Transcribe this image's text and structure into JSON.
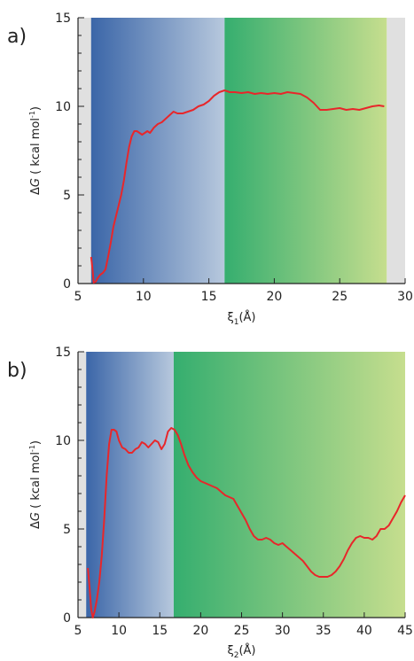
{
  "chart_data": [
    {
      "panel_label": "a)",
      "type": "line",
      "xlim": [
        5,
        30
      ],
      "ylim": [
        0,
        15
      ],
      "x_ticks": [
        5,
        10,
        15,
        20,
        25,
        30
      ],
      "y_ticks": [
        0,
        5,
        10,
        15
      ],
      "y_minor_step": 1,
      "xlabel": {
        "main": "ξ",
        "sub": "1",
        "tail": "(Å)"
      },
      "ylabel": {
        "delta": "Δ",
        "var": "G",
        "open": " ( kcal mol",
        "sup": "-1",
        "close": ")"
      },
      "regions": [
        {
          "from": 5,
          "to": 6.0,
          "color": "#e0e0e0"
        },
        {
          "from": 6.0,
          "to": 16.2,
          "gradient": [
            "#3b66a8",
            "#b7c8dd"
          ]
        },
        {
          "from": 16.2,
          "to": 28.6,
          "gradient": [
            "#35ae6f",
            "#c6de8e"
          ]
        },
        {
          "from": 28.6,
          "to": 30,
          "color": "#e0e0e0"
        }
      ],
      "series": [
        {
          "color": "#e8262a",
          "x": [
            6.0,
            6.1,
            6.2,
            6.35,
            6.5,
            6.7,
            6.9,
            7.1,
            7.3,
            7.5,
            7.7,
            7.9,
            8.1,
            8.3,
            8.5,
            8.7,
            8.9,
            9.1,
            9.3,
            9.5,
            9.7,
            9.9,
            10.1,
            10.3,
            10.5,
            10.8,
            11.1,
            11.4,
            11.7,
            12.0,
            12.3,
            12.6,
            13.0,
            13.4,
            13.8,
            14.2,
            14.6,
            15.0,
            15.4,
            15.8,
            16.2,
            16.6,
            17.0,
            17.5,
            18.0,
            18.5,
            19.0,
            19.5,
            20.0,
            20.5,
            21.0,
            21.5,
            22.0,
            22.5,
            23.0,
            23.5,
            24.0,
            24.5,
            25.0,
            25.5,
            26.0,
            26.5,
            27.0,
            27.5,
            28.0,
            28.4
          ],
          "y": [
            1.5,
            0.9,
            0.05,
            0.1,
            0.3,
            0.5,
            0.6,
            0.8,
            1.5,
            2.3,
            3.2,
            3.8,
            4.4,
            5.0,
            5.8,
            6.8,
            7.7,
            8.3,
            8.6,
            8.6,
            8.5,
            8.4,
            8.5,
            8.6,
            8.5,
            8.8,
            9.0,
            9.1,
            9.3,
            9.5,
            9.7,
            9.6,
            9.6,
            9.7,
            9.8,
            10.0,
            10.1,
            10.3,
            10.6,
            10.8,
            10.9,
            10.8,
            10.8,
            10.75,
            10.8,
            10.7,
            10.75,
            10.7,
            10.75,
            10.7,
            10.8,
            10.75,
            10.7,
            10.5,
            10.2,
            9.8,
            9.8,
            9.85,
            9.9,
            9.8,
            9.85,
            9.8,
            9.9,
            10.0,
            10.05,
            10.0
          ]
        }
      ]
    },
    {
      "panel_label": "b)",
      "type": "line",
      "xlim": [
        5,
        45
      ],
      "ylim": [
        0,
        15
      ],
      "x_ticks": [
        5,
        10,
        15,
        20,
        25,
        30,
        35,
        40,
        45
      ],
      "y_ticks": [
        0,
        5,
        10,
        15
      ],
      "y_minor_step": 1,
      "xlabel": {
        "main": "ξ",
        "sub": "2",
        "tail": "(Å)"
      },
      "ylabel": {
        "delta": "Δ",
        "var": "G",
        "open": " ( kcal mol",
        "sup": "-1",
        "close": ")"
      },
      "regions": [
        {
          "from": 5,
          "to": 6.0,
          "color": "#e0e0e0"
        },
        {
          "from": 6.0,
          "to": 16.7,
          "gradient": [
            "#3b66a8",
            "#b7c8dd"
          ]
        },
        {
          "from": 16.7,
          "to": 45,
          "gradient": [
            "#35ae6f",
            "#c6de8e"
          ]
        }
      ],
      "series": [
        {
          "color": "#e8262a",
          "x": [
            6.2,
            6.4,
            6.6,
            6.8,
            7.0,
            7.3,
            7.6,
            7.9,
            8.2,
            8.5,
            8.8,
            9.1,
            9.4,
            9.7,
            10.0,
            10.4,
            10.8,
            11.2,
            11.6,
            12.0,
            12.4,
            12.8,
            13.2,
            13.6,
            14.0,
            14.4,
            14.8,
            15.2,
            15.6,
            16.0,
            16.4,
            16.8,
            17.2,
            17.6,
            18.0,
            18.5,
            19.0,
            19.5,
            20.0,
            20.5,
            21.0,
            21.5,
            22.0,
            22.5,
            23.0,
            23.5,
            24.0,
            24.5,
            25.0,
            25.5,
            26.0,
            26.5,
            27.0,
            27.5,
            28.0,
            28.5,
            29.0,
            29.5,
            30.0,
            30.5,
            31.0,
            31.5,
            32.0,
            32.5,
            33.0,
            33.5,
            34.0,
            34.5,
            35.0,
            35.5,
            36.0,
            36.5,
            37.0,
            37.5,
            38.0,
            38.5,
            39.0,
            39.5,
            40.0,
            40.5,
            41.0,
            41.5,
            42.0,
            42.5,
            43.0,
            43.5,
            44.0,
            44.5,
            45.0
          ],
          "y": [
            2.8,
            1.8,
            0.5,
            0.0,
            0.3,
            1.0,
            2.0,
            3.5,
            5.5,
            8.0,
            9.8,
            10.6,
            10.6,
            10.5,
            10.0,
            9.6,
            9.5,
            9.3,
            9.3,
            9.5,
            9.6,
            9.9,
            9.8,
            9.6,
            9.8,
            10.0,
            9.9,
            9.5,
            9.8,
            10.5,
            10.7,
            10.6,
            10.3,
            9.8,
            9.2,
            8.6,
            8.2,
            7.9,
            7.7,
            7.6,
            7.5,
            7.4,
            7.3,
            7.1,
            6.9,
            6.8,
            6.7,
            6.3,
            5.9,
            5.5,
            5.0,
            4.6,
            4.4,
            4.4,
            4.5,
            4.4,
            4.2,
            4.1,
            4.2,
            4.0,
            3.8,
            3.6,
            3.4,
            3.2,
            2.9,
            2.6,
            2.4,
            2.3,
            2.3,
            2.3,
            2.4,
            2.6,
            2.9,
            3.3,
            3.8,
            4.2,
            4.5,
            4.6,
            4.5,
            4.5,
            4.4,
            4.6,
            5.0,
            5.0,
            5.2,
            5.6,
            6.0,
            6.5,
            6.9
          ]
        }
      ]
    }
  ]
}
